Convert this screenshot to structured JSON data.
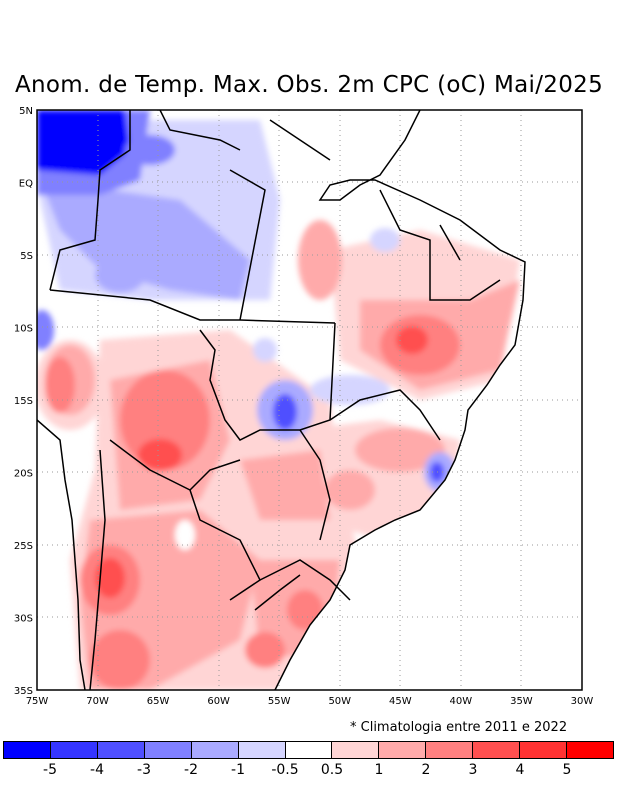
{
  "title": "Anom. de Temp. Max. Obs. 2m CPC (oC) Mai/2025",
  "note": "* Climatologia entre 2011 e 2022",
  "lat_labels": [
    "5N",
    "EQ",
    "5S",
    "10S",
    "15S",
    "20S",
    "25S",
    "30S",
    "35S"
  ],
  "lon_labels": [
    "75W",
    "70W",
    "65W",
    "60W",
    "55W",
    "50W",
    "45W",
    "40W",
    "35W",
    "30W"
  ],
  "colorbar": {
    "colors": [
      "#0000ff",
      "#3535ff",
      "#5050ff",
      "#8080ff",
      "#aaaaff",
      "#d5d5ff",
      "#ffffff",
      "#ffd5d5",
      "#ffaaaa",
      "#ff8080",
      "#ff5050",
      "#ff3232",
      "#ff0000"
    ],
    "labels": [
      "-5",
      "-4",
      "-3",
      "-2",
      "-1",
      "-0.5",
      "0.5",
      "1",
      "2",
      "3",
      "4",
      "5"
    ]
  }
}
